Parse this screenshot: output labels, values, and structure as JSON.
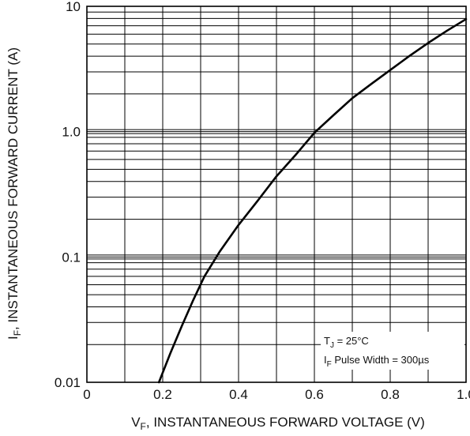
{
  "chart_data": {
    "type": "line",
    "xlabel": {
      "main": "V",
      "sub": "F",
      "rest": ", INSTANTANEOUS FORWARD VOLTAGE (V)"
    },
    "ylabel": {
      "main": "I",
      "sub": "F",
      "rest": ", INSTANTANEOUS FORWARD CURRENT (A)"
    },
    "xlim": [
      0,
      1.0
    ],
    "ylim": [
      0.01,
      10
    ],
    "yscale": "log",
    "grid": true,
    "x_ticks": [
      {
        "value": 0,
        "label": "0"
      },
      {
        "value": 0.2,
        "label": "0.2"
      },
      {
        "value": 0.4,
        "label": "0.4"
      },
      {
        "value": 0.6,
        "label": "0.6"
      },
      {
        "value": 0.8,
        "label": "0.8"
      },
      {
        "value": 1.0,
        "label": "1.0"
      }
    ],
    "y_ticks": [
      {
        "value": 0.01,
        "label": "0.01"
      },
      {
        "value": 0.1,
        "label": "0.1"
      },
      {
        "value": 1,
        "label": "1.0"
      },
      {
        "value": 10,
        "label": "10"
      }
    ],
    "series": [
      {
        "color": "#000000",
        "x": [
          0.19,
          0.22,
          0.25,
          0.28,
          0.31,
          0.35,
          0.4,
          0.45,
          0.5,
          0.55,
          0.6,
          0.65,
          0.7,
          0.75,
          0.8,
          0.85,
          0.9,
          0.95,
          1.0
        ],
        "y": [
          0.01,
          0.017,
          0.028,
          0.045,
          0.07,
          0.11,
          0.18,
          0.28,
          0.44,
          0.65,
          0.98,
          1.35,
          1.85,
          2.4,
          3.1,
          4.0,
          5.1,
          6.4,
          7.9
        ]
      }
    ],
    "annotation": {
      "line1_main": "T",
      "line1_sub": "J",
      "line1_rest": " = 25°C",
      "line2_main": "I",
      "line2_sub": "F",
      "line2_rest": " Pulse Width = 300µs"
    }
  }
}
